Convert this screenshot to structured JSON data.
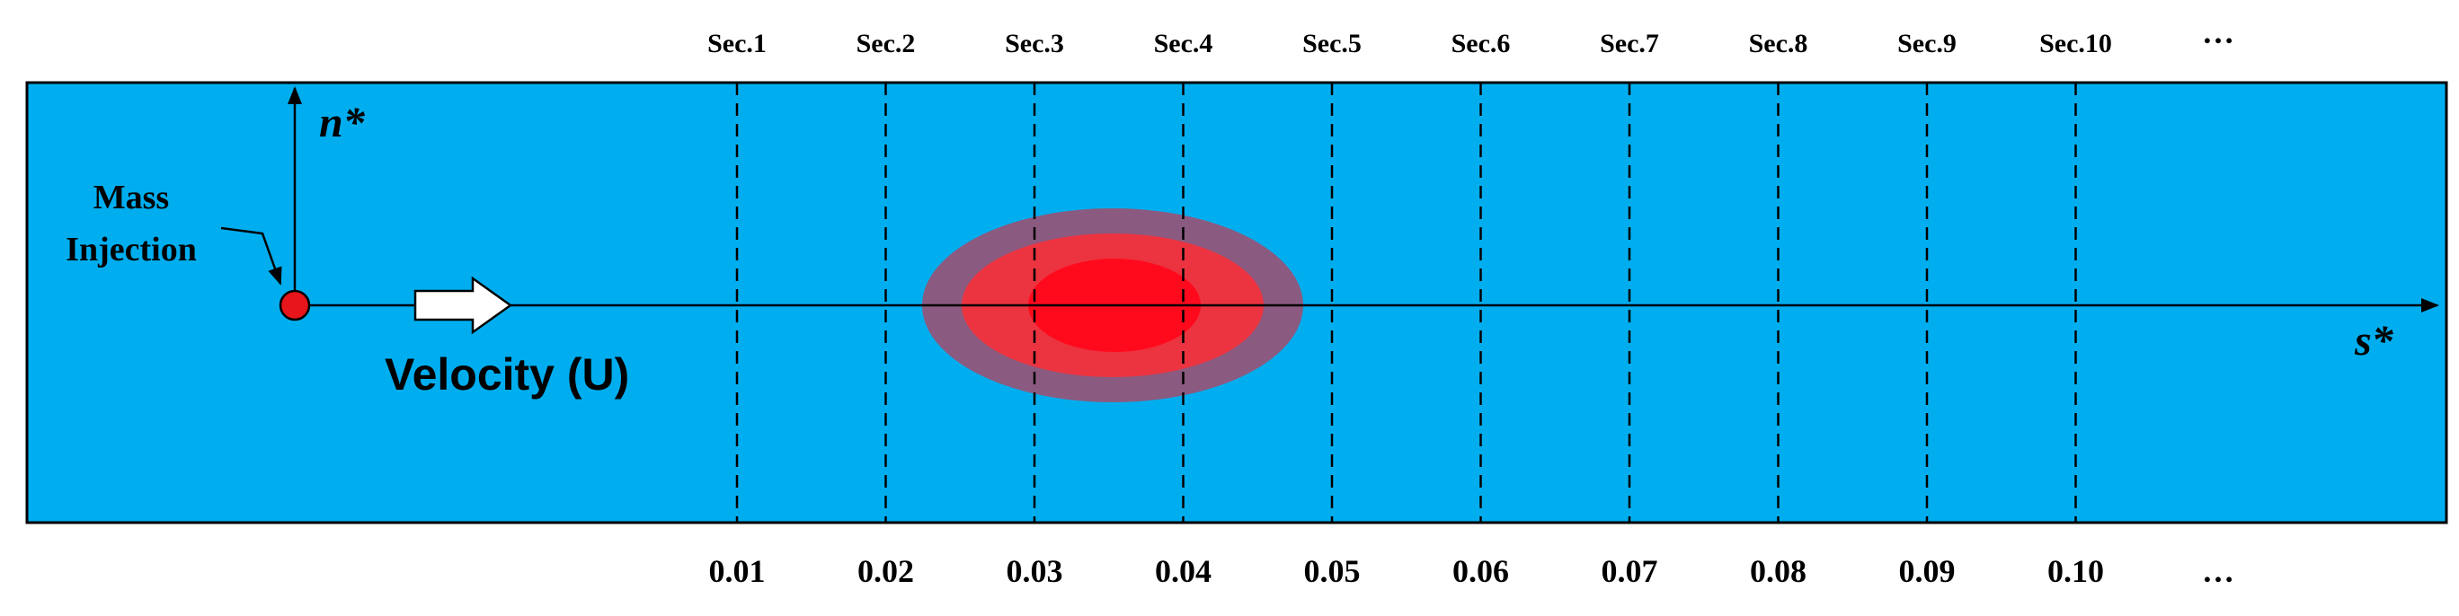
{
  "colors": {
    "channel": "#00AEEF",
    "plume_outer": "#8B5A80",
    "plume_middle": "#EC3340",
    "plume_inner": "#FF0A1C",
    "injection_point": "#E8151B",
    "arrow_fill": "#FFFFFF",
    "lines": "#000000"
  },
  "sections": [
    {
      "label": "Sec.1",
      "value": "0.01"
    },
    {
      "label": "Sec.2",
      "value": "0.02"
    },
    {
      "label": "Sec.3",
      "value": "0.03"
    },
    {
      "label": "Sec.4",
      "value": "0.04"
    },
    {
      "label": "Sec.5",
      "value": "0.05"
    },
    {
      "label": "Sec.6",
      "value": "0.06"
    },
    {
      "label": "Sec.7",
      "value": "0.07"
    },
    {
      "label": "Sec.8",
      "value": "0.08"
    },
    {
      "label": "Sec.9",
      "value": "0.09"
    },
    {
      "label": "Sec.10",
      "value": "0.10"
    }
  ],
  "ellipsis": "…",
  "axes": {
    "n_label": "n*",
    "s_label": "s*"
  },
  "injection": {
    "line1": "Mass",
    "line2": "Injection"
  },
  "velocity_label": "Velocity (U)"
}
